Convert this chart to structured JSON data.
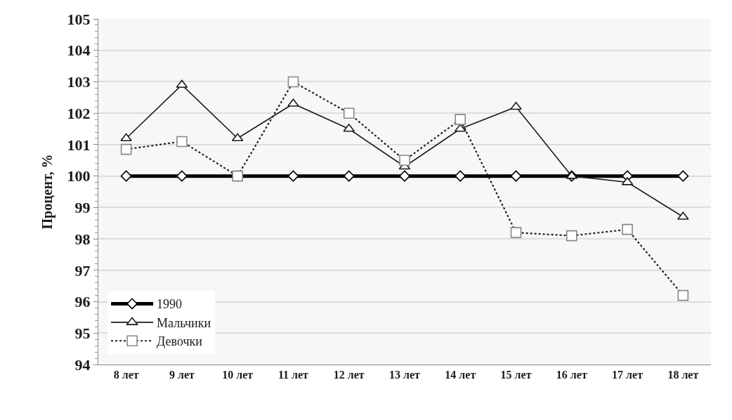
{
  "chart_data": {
    "type": "line",
    "ylabel": "Процент, %",
    "categories": [
      "8 лет",
      "9 лет",
      "10 лет",
      "11 лет",
      "12 лет",
      "13 лет",
      "14 лет",
      "15 лет",
      "16 лет",
      "17 лет",
      "18 лет"
    ],
    "series": [
      {
        "name": "1990",
        "color": "#000000",
        "marker": "diamond",
        "line_style": "solid",
        "values": [
          100,
          100,
          100,
          100,
          100,
          100,
          100,
          100,
          100,
          100,
          100
        ]
      },
      {
        "name": "Мальчики",
        "color": "#1a1a1a",
        "marker": "triangle",
        "line_style": "solid",
        "values": [
          101.2,
          102.9,
          101.2,
          102.3,
          101.5,
          100.3,
          101.5,
          102.2,
          100.0,
          99.8,
          98.7
        ]
      },
      {
        "name": "Девочки",
        "color": "#222222",
        "marker": "square",
        "line_style": "dotted",
        "values": [
          100.85,
          101.1,
          100.0,
          103.0,
          102.0,
          100.5,
          101.8,
          98.2,
          98.1,
          98.3,
          96.2
        ]
      }
    ],
    "ylim": [
      94,
      105
    ],
    "yticks": [
      94,
      95,
      96,
      97,
      98,
      99,
      100,
      101,
      102,
      103,
      104,
      105
    ],
    "grid": "y",
    "legend": "bottom left"
  }
}
